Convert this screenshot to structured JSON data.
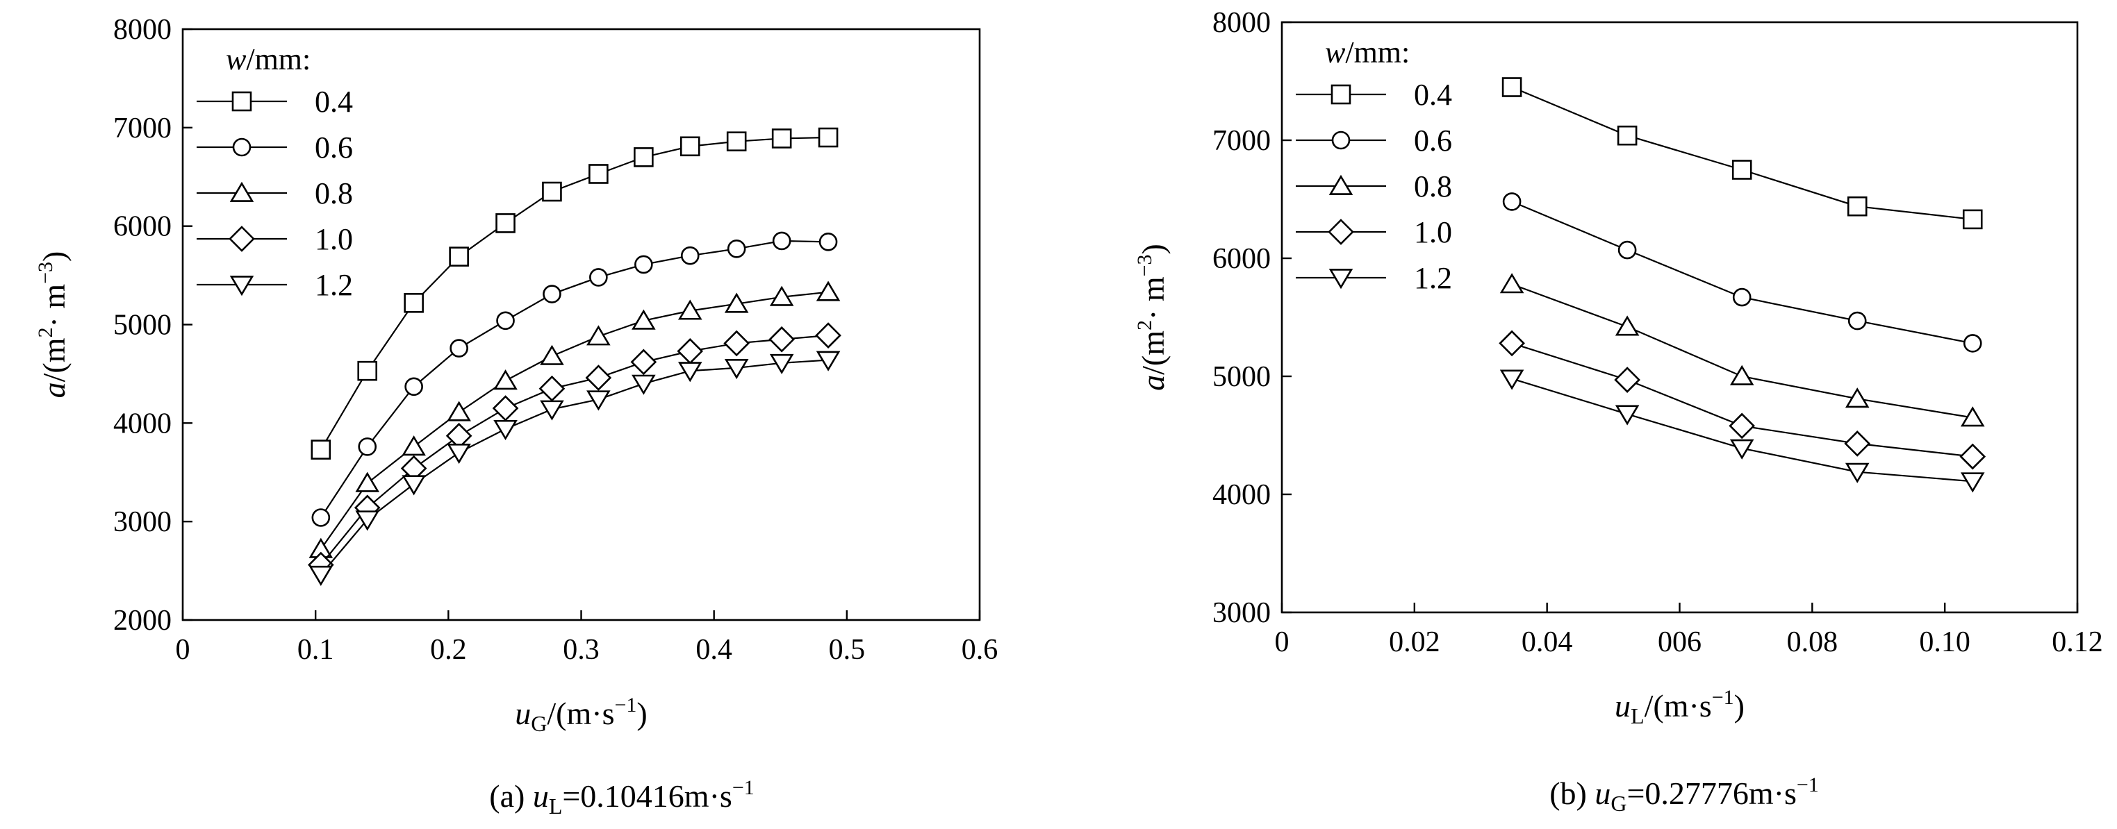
{
  "chart_data": [
    {
      "type": "line",
      "caption": {
        "prefix": "(a)",
        "var": "u",
        "sub": "L",
        "rest": "=0.10416m·s",
        "sup": "−1"
      },
      "xlabel": {
        "var": "u",
        "sub": "G",
        "rest": "/(m·s",
        "sup": "−1",
        "end": ")"
      },
      "ylabel": {
        "var": "a",
        "rest": "/(m",
        "sup1": "2",
        "mid": "· m",
        "sup2": "−3",
        "end": ")"
      },
      "xlim": [
        0,
        0.6
      ],
      "ylim": [
        2000,
        8000
      ],
      "xticks": [
        "0",
        "0.1",
        "0.2",
        "0.3",
        "0.4",
        "0.5",
        "0.6"
      ],
      "yticks": [
        "2000",
        "3000",
        "4000",
        "5000",
        "6000",
        "7000",
        "8000"
      ],
      "grid": false,
      "legend": {
        "title_var": "w",
        "title_rest": "/mm:",
        "position": "top-left"
      },
      "x": [
        0.104,
        0.139,
        0.174,
        0.208,
        0.243,
        0.278,
        0.313,
        0.347,
        0.382,
        0.417,
        0.451,
        0.486
      ],
      "series": [
        {
          "name": "0.4",
          "marker": "square",
          "values": [
            3730,
            4530,
            5220,
            5690,
            6030,
            6350,
            6530,
            6700,
            6810,
            6860,
            6890,
            6900
          ]
        },
        {
          "name": "0.6",
          "marker": "circle",
          "values": [
            3040,
            3760,
            4370,
            4760,
            5040,
            5310,
            5480,
            5610,
            5700,
            5770,
            5850,
            5840
          ]
        },
        {
          "name": "0.8",
          "marker": "triangle-up",
          "values": [
            2720,
            3390,
            3760,
            4110,
            4430,
            4680,
            4880,
            5040,
            5140,
            5210,
            5280,
            5330
          ]
        },
        {
          "name": "1.0",
          "marker": "diamond",
          "values": [
            2560,
            3140,
            3540,
            3870,
            4150,
            4350,
            4460,
            4620,
            4730,
            4810,
            4850,
            4890
          ]
        },
        {
          "name": "1.2",
          "marker": "triangle-down",
          "values": [
            2460,
            3020,
            3380,
            3700,
            3940,
            4140,
            4240,
            4400,
            4530,
            4560,
            4610,
            4640
          ]
        }
      ]
    },
    {
      "type": "line",
      "caption": {
        "prefix": "(b)",
        "var": "u",
        "sub": "G",
        "rest": "=0.27776m·s",
        "sup": "−1"
      },
      "xlabel": {
        "var": "u",
        "sub": "L",
        "rest": "/(m·s",
        "sup": "−1",
        "end": ")"
      },
      "ylabel": {
        "var": "a",
        "rest": "/(m",
        "sup1": "2",
        "mid": "· m",
        "sup2": "−3",
        "end": ")"
      },
      "xlim": [
        0,
        0.12
      ],
      "ylim": [
        3000,
        8000
      ],
      "xticks": [
        "0",
        "0.02",
        "0.04",
        "006",
        "0.08",
        "0.10",
        "0.12"
      ],
      "yticks": [
        "3000",
        "4000",
        "5000",
        "6000",
        "7000",
        "8000"
      ],
      "grid": false,
      "legend": {
        "title_var": "w",
        "title_rest": "/mm:",
        "position": "top-left"
      },
      "x": [
        0.0347,
        0.0521,
        0.0694,
        0.0868,
        0.1042
      ],
      "series": [
        {
          "name": "0.4",
          "marker": "square",
          "values": [
            7450,
            7040,
            6750,
            6440,
            6330
          ]
        },
        {
          "name": "0.6",
          "marker": "circle",
          "values": [
            6480,
            6070,
            5670,
            5470,
            5280
          ]
        },
        {
          "name": "0.8",
          "marker": "triangle-up",
          "values": [
            5780,
            5420,
            5000,
            4810,
            4650
          ]
        },
        {
          "name": "1.0",
          "marker": "diamond",
          "values": [
            5280,
            4970,
            4580,
            4430,
            4320
          ]
        },
        {
          "name": "1.2",
          "marker": "triangle-down",
          "values": [
            4980,
            4680,
            4390,
            4190,
            4110
          ]
        }
      ]
    }
  ]
}
